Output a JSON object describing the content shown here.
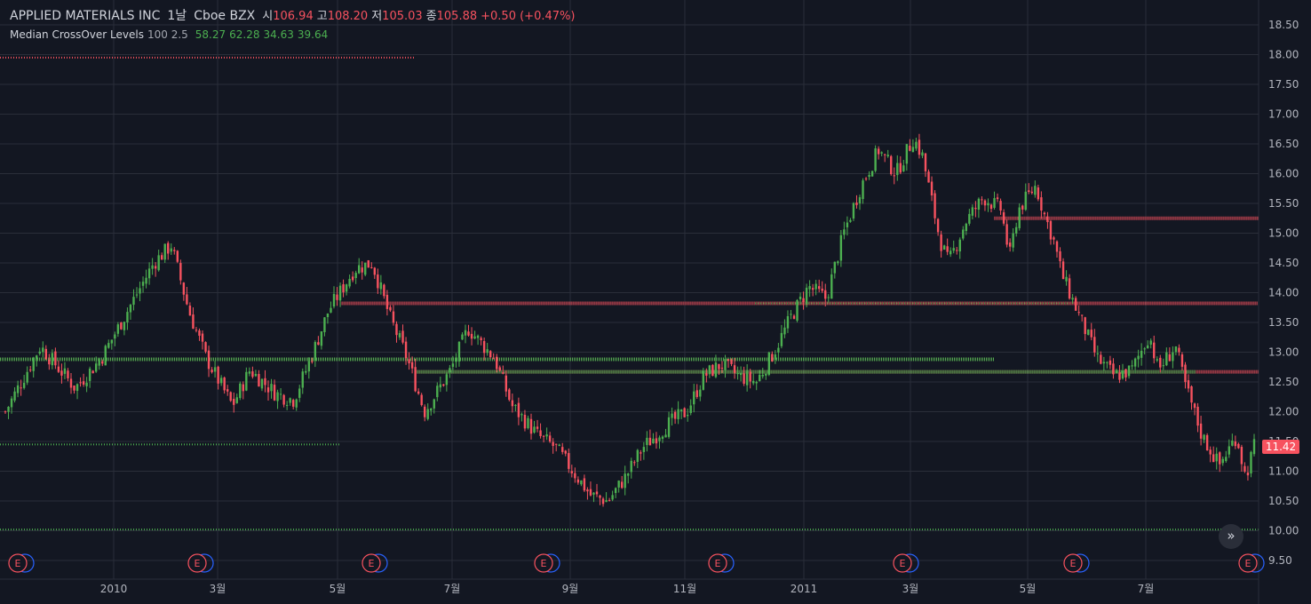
{
  "header": {
    "symbol": "APPLIED MATERIALS INC",
    "interval": "1날",
    "exchange": "Cboe BZX",
    "open_label": "시",
    "open": "106.94",
    "high_label": "고",
    "high": "108.20",
    "low_label": "저",
    "low": "105.03",
    "close_label": "종",
    "close": "105.88",
    "change": "+0.50 (+0.47%)"
  },
  "indicator": {
    "name": "Median CrossOver Levels",
    "params": "100 2.5",
    "values": [
      "58.27",
      "62.28",
      "34.63",
      "39.64"
    ]
  },
  "last_price": "11.42",
  "scroll_icon": "double-chevron-right-icon",
  "colors": {
    "background": "#131722",
    "grid": "#2a2e39",
    "up": "#4caf50",
    "down": "#f7525f",
    "text": "#d1d4dc",
    "axis_text": "#b2b5be"
  },
  "chart_data": {
    "type": "candlestick",
    "y_ticks": [
      "18.50",
      "18.00",
      "17.50",
      "17.00",
      "16.50",
      "16.00",
      "15.50",
      "15.00",
      "14.50",
      "14.00",
      "13.50",
      "13.00",
      "12.50",
      "12.00",
      "11.50",
      "11.00",
      "10.50",
      "10.00",
      "9.50"
    ],
    "x_ticks": [
      "2010",
      "3월",
      "5월",
      "7월",
      "9월",
      "11월",
      "2011",
      "3월",
      "5월",
      "7월"
    ],
    "ylim": [
      9.4,
      18.7
    ],
    "earnings_marker": "E",
    "price_path": [
      [
        0,
        12.0
      ],
      [
        4,
        13.1
      ],
      [
        8,
        12.4
      ],
      [
        11,
        12.9
      ],
      [
        14,
        13.7
      ],
      [
        17,
        14.5
      ],
      [
        19,
        14.8
      ],
      [
        21,
        13.7
      ],
      [
        23,
        12.9
      ],
      [
        26,
        12.1
      ],
      [
        28,
        12.7
      ],
      [
        31,
        12.3
      ],
      [
        33,
        12.2
      ],
      [
        35,
        12.9
      ],
      [
        37,
        13.7
      ],
      [
        40,
        14.4
      ],
      [
        42,
        14.5
      ],
      [
        44,
        13.6
      ],
      [
        46,
        12.9
      ],
      [
        48,
        12.0
      ],
      [
        51,
        12.7
      ],
      [
        53,
        13.4
      ],
      [
        56,
        12.9
      ],
      [
        58,
        12.1
      ],
      [
        61,
        11.6
      ],
      [
        63,
        11.4
      ],
      [
        65,
        11.0
      ],
      [
        67,
        10.6
      ],
      [
        69,
        10.5
      ],
      [
        71,
        10.9
      ],
      [
        73,
        11.4
      ],
      [
        76,
        11.8
      ],
      [
        78,
        12.0
      ],
      [
        80,
        12.6
      ],
      [
        82,
        12.8
      ],
      [
        84,
        12.6
      ],
      [
        86,
        12.5
      ],
      [
        88,
        13.0
      ],
      [
        90,
        13.6
      ],
      [
        92,
        14.1
      ],
      [
        94,
        13.9
      ],
      [
        96,
        15.0
      ],
      [
        98,
        15.8
      ],
      [
        100,
        16.4
      ],
      [
        102,
        16.0
      ],
      [
        104,
        16.6
      ],
      [
        105,
        16.3
      ],
      [
        106,
        15.6
      ],
      [
        107,
        14.9
      ],
      [
        108,
        14.5
      ],
      [
        110,
        15.2
      ],
      [
        112,
        15.6
      ],
      [
        114,
        15.4
      ],
      [
        115,
        14.6
      ],
      [
        116,
        15.4
      ],
      [
        118,
        15.8
      ],
      [
        119,
        15.3
      ],
      [
        120,
        14.9
      ],
      [
        121,
        14.3
      ],
      [
        123,
        13.6
      ],
      [
        125,
        12.9
      ],
      [
        127,
        12.6
      ],
      [
        129,
        12.7
      ],
      [
        131,
        13.3
      ],
      [
        132,
        12.7
      ],
      [
        134,
        13.1
      ],
      [
        135,
        12.5
      ],
      [
        137,
        11.6
      ],
      [
        139,
        11.1
      ],
      [
        141,
        11.6
      ],
      [
        142,
        10.9
      ],
      [
        143,
        11.42
      ]
    ],
    "levels": [
      {
        "value": 17.95,
        "color": "down",
        "from": 0,
        "to": 0.33
      },
      {
        "value": 11.45,
        "color": "up",
        "from": 0,
        "to": 0.27
      },
      {
        "value": 10.02,
        "color": "up",
        "from": 0,
        "to": 1.0
      },
      {
        "value": 12.88,
        "color": "down",
        "from": 0,
        "to": 0.79
      },
      {
        "value": 12.88,
        "color": "up",
        "from": 0,
        "to": 0.79
      },
      {
        "value": 13.82,
        "color": "down",
        "from": 0.27,
        "to": 1.0
      },
      {
        "value": 13.82,
        "color": "up",
        "from": 0.6,
        "to": 0.85
      },
      {
        "value": 12.67,
        "color": "down",
        "from": 0.33,
        "to": 1.0
      },
      {
        "value": 12.67,
        "color": "up",
        "from": 0.33,
        "to": 0.95
      },
      {
        "value": 15.25,
        "color": "down",
        "from": 0.79,
        "to": 1.0
      }
    ]
  }
}
